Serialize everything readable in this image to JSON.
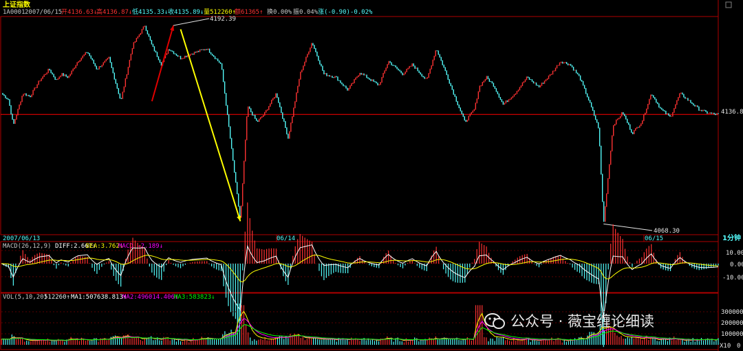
{
  "header": {
    "title": "上证指数",
    "code": "1A0001",
    "date": "2007/06/15",
    "open": "开4136.63↓",
    "high": "高4136.87↓",
    "low": "低4135.33↓",
    "close": "收4135.89↓",
    "volume": "量512260↑",
    "amount": "额61365↑",
    "turnover": "换0.00%",
    "amplitude": "振0.04%",
    "change": "涨(-0.90)-0.02%"
  },
  "main_chart": {
    "last_label": "4136.8",
    "high_label": "4192.39",
    "low_label": "4068.30",
    "date_labels": [
      "2007/06/13",
      "06/14",
      "06/15"
    ],
    "period_label": "1分钟"
  },
  "macd_panel": {
    "title": "MACD(26,12,9)",
    "diff": "DIFF:2.667↓",
    "dea": "DEA:3.762↓",
    "macd": "MACD:-2.189↓",
    "ticks": [
      "10.00",
      "0.00",
      "-10.00"
    ]
  },
  "vol_panel": {
    "title": "VOL(5,10,20)",
    "value": "512260↑",
    "ma1": "MA1:507638.813↑",
    "ma2": "MA2:496014.406↓",
    "ma3": "MA3:583823↓",
    "ticks": [
      "300000",
      "200000",
      "100000"
    ],
    "unit": "X10",
    "zero": "0"
  },
  "watermark": "公众号 · 薇宝缠论细读",
  "colors": {
    "up": "#ff3232",
    "down": "#54fcfc",
    "frame": "#b00000",
    "price_line": "#ff0000",
    "diff_line": "#ffffff",
    "dea_line": "#ffff00",
    "ma2_line": "#ff00ff",
    "ma3_line": "#00ff00",
    "arrow_up": "#e00000",
    "arrow_down": "#ffff00"
  },
  "chart_data": {
    "type": "line",
    "interval": "1分钟",
    "price": {
      "x": [
        0,
        0.03,
        0.05,
        0.09,
        0.12,
        0.16,
        0.2,
        0.23,
        0.25,
        0.28,
        0.32,
        0.36,
        0.4,
        0.45,
        0.5,
        0.55,
        0.6,
        0.63,
        0.67,
        0.7,
        0.75,
        0.8,
        0.86,
        0.92,
        1.0,
        1.03,
        1.07,
        1.1,
        1.15,
        1.2,
        1.25,
        1.3,
        1.35,
        1.4,
        1.45,
        1.5,
        1.55,
        1.58,
        1.62,
        1.68,
        1.72,
        1.78,
        1.82,
        1.86,
        1.9,
        1.94,
        1.98,
        2.0,
        2.03,
        2.06,
        2.1,
        2.15,
        2.2,
        2.25,
        2.3,
        2.34,
        2.38,
        2.42,
        2.46,
        2.5,
        2.52,
        2.56,
        2.6,
        2.64,
        2.68,
        2.72,
        2.76,
        2.8,
        2.84,
        2.88,
        2.92,
        2.95,
        2.98,
        3.0
      ],
      "values": [
        4150,
        4146,
        4130,
        4150,
        4148,
        4158,
        4165,
        4158,
        4162,
        4160,
        4170,
        4176,
        4165,
        4172,
        4145,
        4180,
        4192.39,
        4180,
        4168,
        4178,
        4172,
        4175,
        4178,
        4168,
        4070,
        4142,
        4132,
        4137,
        4150,
        4122,
        4162,
        4182,
        4162,
        4160,
        4152,
        4163,
        4158,
        4155,
        4170,
        4162,
        4168,
        4158,
        4178,
        4163,
        4147,
        4132,
        4140,
        4154,
        4160,
        4155,
        4143,
        4150,
        4160,
        4154,
        4162,
        4170,
        4168,
        4160,
        4145,
        4128,
        4068.3,
        4130,
        4138,
        4125,
        4132,
        4150,
        4140,
        4135,
        4150,
        4145,
        4140,
        4138,
        4137,
        4136.8
      ]
    },
    "price_high": 4192.39,
    "price_low": 4068.3,
    "price_last": 4136.8,
    "annotations": [
      {
        "type": "arrow",
        "from": [
          0.63,
          4145
        ],
        "to": [
          0.72,
          4192.39
        ],
        "color": "red"
      },
      {
        "type": "arrow",
        "from": [
          0.75,
          4190
        ],
        "to": [
          1.0,
          4070
        ],
        "color": "yellow"
      }
    ],
    "macd": {
      "ylim": [
        -15,
        15
      ],
      "ticks": [
        10,
        0,
        -10
      ]
    },
    "volume": {
      "ticks": [
        300000,
        200000,
        100000,
        0
      ],
      "unit": "X10"
    }
  }
}
